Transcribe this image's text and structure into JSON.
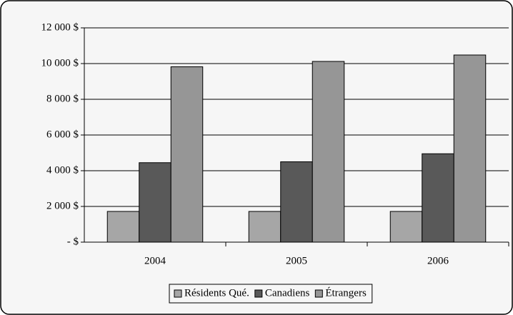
{
  "chart_data": {
    "type": "bar",
    "categories": [
      "2004",
      "2005",
      "2006"
    ],
    "series": [
      {
        "name": "Résidents Qué.",
        "color": "#a6a6a6",
        "values": [
          1720,
          1720,
          1720
        ]
      },
      {
        "name": "Canadiens",
        "color": "#595959",
        "values": [
          4450,
          4500,
          4950
        ]
      },
      {
        "name": "Étrangers",
        "color": "#969696",
        "values": [
          9820,
          10120,
          10480
        ]
      }
    ],
    "ylim": [
      0,
      12000
    ],
    "yticks": [
      {
        "value": 0,
        "label": "- $"
      },
      {
        "value": 2000,
        "label": "2 000 $"
      },
      {
        "value": 4000,
        "label": "4 000 $"
      },
      {
        "value": 6000,
        "label": "6 000 $"
      },
      {
        "value": 8000,
        "label": "8 000 $"
      },
      {
        "value": 10000,
        "label": "10 000 $"
      },
      {
        "value": 12000,
        "label": "12 000 $"
      }
    ],
    "grid": true,
    "legend": "bottom"
  }
}
